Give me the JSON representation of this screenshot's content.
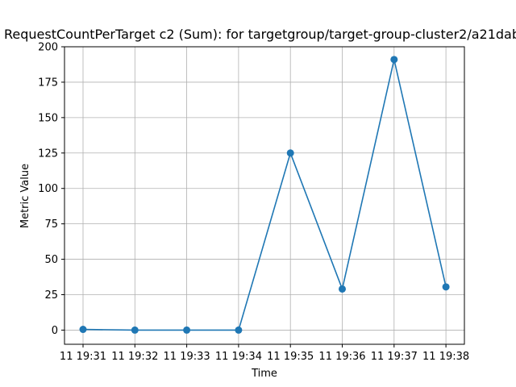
{
  "chart_data": {
    "type": "line",
    "title": "RequestCountPerTarget c2 (Sum):  for targetgroup/target-group-cluster2/a21dab",
    "xlabel": "Time",
    "ylabel": "Metric Value",
    "categories": [
      "11 19:31",
      "11 19:32",
      "11 19:33",
      "11 19:34",
      "11 19:35",
      "11 19:36",
      "11 19:37",
      "11 19:38"
    ],
    "series": [
      {
        "values": [
          0.5,
          0,
          0,
          0,
          125,
          29,
          191,
          30.5
        ]
      }
    ],
    "ylim": [
      -10,
      200
    ],
    "yticks": [
      0,
      25,
      50,
      75,
      100,
      125,
      150,
      175,
      200
    ],
    "grid": true,
    "line_color": "#1f77b4"
  }
}
